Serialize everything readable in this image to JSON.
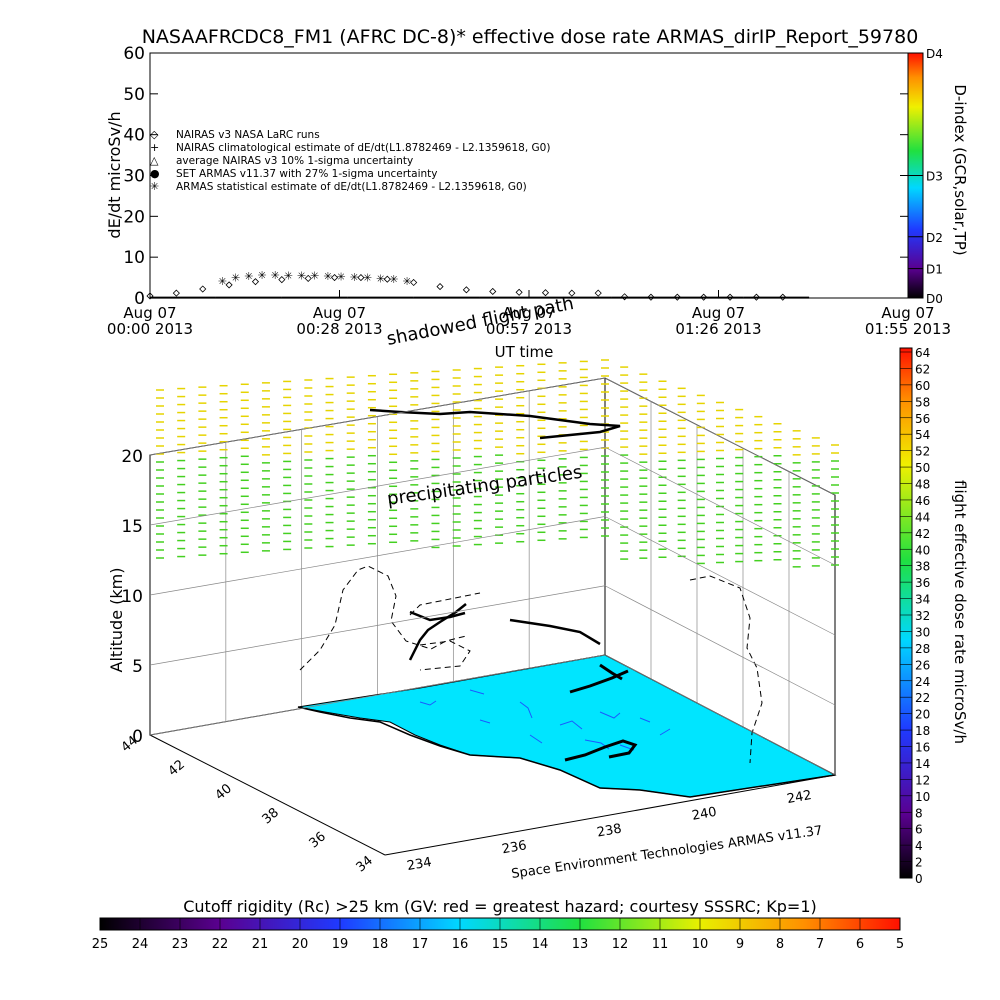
{
  "top_chart": {
    "title": "NASAAFRCDC8_FM1 (AFRC DC-8)* effective dose rate ARMAS_dirIP_Report_59780",
    "ylabel": "dE/dt microSv/h",
    "xlabel": "UT time",
    "x_ticks": [
      {
        "line1": "Aug 07",
        "line2": "00:00 2013"
      },
      {
        "line1": "Aug 07",
        "line2": "00:28 2013"
      },
      {
        "line1": "Aug 07",
        "line2": "00:57 2013"
      },
      {
        "line1": "Aug 07",
        "line2": "01:26 2013"
      },
      {
        "line1": "Aug 07",
        "line2": "01:55 2013"
      }
    ],
    "y_ticks": [
      "0",
      "10",
      "20",
      "30",
      "40",
      "50",
      "60"
    ],
    "legend": [
      {
        "symbol": "◇",
        "text": "NAIRAS v3 NASA LaRC runs"
      },
      {
        "symbol": "+",
        "text": "NAIRAS climatological estimate of dE/dt(L1.8782469 - L2.1359618, G0)"
      },
      {
        "symbol": "△",
        "text": "average NAIRAS v3 10% 1-sigma uncertainty"
      },
      {
        "symbol": "●",
        "text": "SET ARMAS v11.37 with 27% 1-sigma uncertainty",
        "color": "#1a40ff"
      },
      {
        "symbol": "✳",
        "text": "ARMAS statistical estimate of dE/dt(L1.8782469 - L2.1359618, G0)"
      }
    ],
    "colorbar": {
      "title": "D-index (GCR,solar,TP)",
      "labels": [
        "D0",
        "D1",
        "D2",
        "D3",
        "D4"
      ]
    }
  },
  "chart_data": [
    {
      "type": "scatter",
      "title": "NASAAFRCDC8_FM1 (AFRC DC-8)* effective dose rate ARMAS_dirIP_Report_59780",
      "xlabel": "UT time",
      "ylabel": "dE/dt microSv/h",
      "xlim_minutes": [
        0,
        115
      ],
      "ylim": [
        0,
        60
      ],
      "series": [
        {
          "name": "NAIRAS v3 NASA LaRC runs",
          "x_minutes": [
            0,
            4,
            8,
            12,
            16,
            20,
            24,
            28,
            32,
            36,
            40,
            44,
            48,
            52,
            56,
            60,
            64,
            68,
            72,
            76,
            80,
            84,
            88,
            92,
            96
          ],
          "values": [
            0.5,
            1.2,
            2.2,
            3.2,
            4.0,
            4.5,
            4.8,
            5.0,
            5.0,
            4.6,
            3.8,
            2.8,
            2.0,
            1.6,
            1.4,
            1.3,
            1.2,
            1.2,
            0.3,
            0.2,
            0.2,
            0.2,
            0.2,
            0.2,
            0.2
          ]
        },
        {
          "name": "ARMAS statistical estimate of dE/dt(L1.8782469 - L2.1359618, G0)",
          "x_minutes": [
            11,
            13,
            15,
            17,
            19,
            21,
            23,
            25,
            27,
            29,
            31,
            33,
            35,
            37,
            39
          ],
          "values": [
            4.2,
            5.0,
            5.4,
            5.6,
            5.6,
            5.5,
            5.5,
            5.5,
            5.4,
            5.3,
            5.2,
            5.0,
            4.8,
            4.6,
            4.2
          ]
        },
        {
          "name": "SET ARMAS v11.37 with 27% 1-sigma uncertainty",
          "x_minutes": [
            0,
            10,
            20,
            30,
            40,
            50,
            60,
            70,
            80,
            90,
            100
          ],
          "values": [
            0.1,
            0.1,
            0.1,
            0.1,
            0.1,
            0.1,
            0.1,
            0.1,
            0.1,
            0.1,
            0.1
          ]
        }
      ]
    },
    {
      "type": "scatter",
      "ylabel": "Altitude (km)",
      "z_ticks": [
        "0",
        "5",
        "10",
        "15",
        "20"
      ],
      "lat_ticks": [
        "34",
        "36",
        "38",
        "40",
        "42",
        "44"
      ],
      "lon_ticks": [
        "234",
        "236",
        "238",
        "240",
        "242"
      ]
    }
  ],
  "panel3d": {
    "label_shadowed": "shadowed flight path",
    "label_precip": "precipitating particles",
    "credit": "Space Environment Technologies ARMAS v11.37",
    "colorbar": {
      "title": "flight effective dose rate microSv/h",
      "labels": [
        "0",
        "2",
        "4",
        "6",
        "8",
        "10",
        "12",
        "14",
        "16",
        "18",
        "20",
        "22",
        "24",
        "26",
        "28",
        "30",
        "32",
        "34",
        "36",
        "38",
        "40",
        "42",
        "44",
        "46",
        "48",
        "50",
        "52",
        "54",
        "56",
        "58",
        "60",
        "62",
        "64"
      ]
    }
  },
  "bottom_bar": {
    "title": "Cutoff rigidity (Rc) >25 km (GV: red = greatest hazard; courtesy SSSRC; Kp=1)",
    "labels": [
      "25",
      "24",
      "23",
      "22",
      "21",
      "20",
      "19",
      "18",
      "17",
      "16",
      "15",
      "14",
      "13",
      "12",
      "11",
      "10",
      "9",
      "8",
      "7",
      "6",
      "5"
    ]
  },
  "colors": {
    "sea": "#00e5ff",
    "ocean_detail": "#1a5aff",
    "armas_dot": "#1a40ff"
  }
}
